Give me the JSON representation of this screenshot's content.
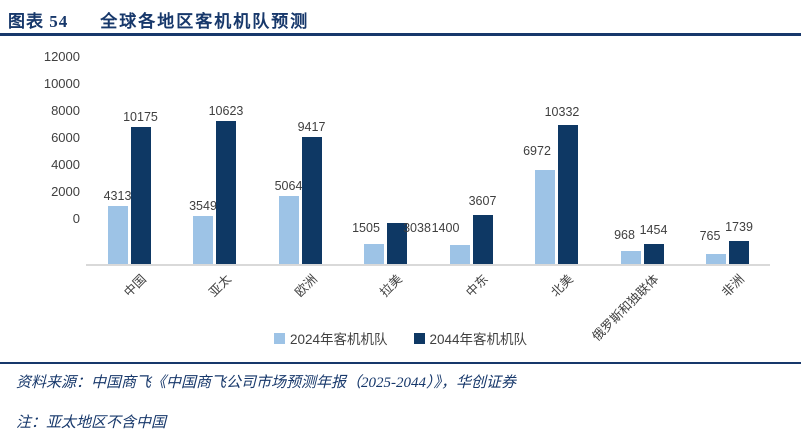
{
  "title": {
    "prefix": "图表 54",
    "text": "全球各地区客机机队预测"
  },
  "chart_data": {
    "type": "bar",
    "title": "全球各地区客机机队预测",
    "categories": [
      "中国",
      "亚太",
      "欧洲",
      "拉美",
      "中东",
      "北美",
      "俄罗斯和独联体",
      "非洲"
    ],
    "series": [
      {
        "name": "2024年客机机队",
        "color": "#9DC3E6",
        "values": [
          4313,
          3549,
          5064,
          1505,
          1400,
          6972,
          968,
          765
        ]
      },
      {
        "name": "2044年客机机队",
        "color": "#0E3864",
        "values": [
          10175,
          10623,
          9417,
          3038,
          3607,
          10332,
          1454,
          1739
        ]
      }
    ],
    "ylim": [
      0,
      12000
    ],
    "ytick_interval": 2000,
    "yticks": [
      "0",
      "2000",
      "4000",
      "6000",
      "8000",
      "10000",
      "12000"
    ],
    "grid": false,
    "data_labels": true,
    "legend_position": "bottom",
    "xlabel": "",
    "ylabel": ""
  },
  "colors": {
    "accent": "#17386B",
    "axis_line": "#D9D9D9",
    "label_text": "#404040"
  },
  "footer": {
    "source": "资料来源：中国商飞《中国商飞公司市场预测年报（2025-2044）》，华创证券",
    "note": "注：亚太地区不含中国"
  }
}
